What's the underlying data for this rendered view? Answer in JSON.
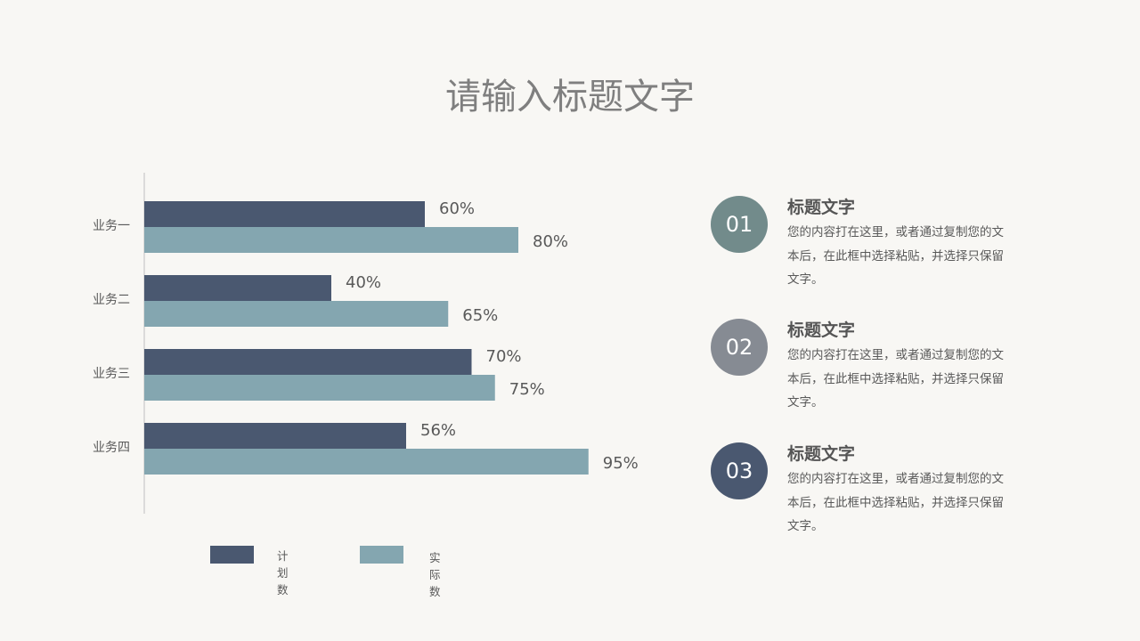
{
  "title": "请输入标题文字",
  "chart_data": {
    "type": "bar",
    "orientation": "horizontal",
    "categories": [
      "业务一",
      "业务二",
      "业务三",
      "业务四"
    ],
    "series": [
      {
        "name": "计划数",
        "color": "#4a5870",
        "values": [
          60,
          40,
          70,
          56
        ],
        "labels": [
          "60%",
          "40%",
          "70%",
          "56%"
        ]
      },
      {
        "name": "实际数",
        "color": "#84a6b0",
        "values": [
          80,
          65,
          75,
          95
        ],
        "labels": [
          "80%",
          "65%",
          "75%",
          "95%"
        ]
      }
    ],
    "unit": "%",
    "legend": "bottom"
  },
  "items": [
    {
      "num": "01",
      "color": "#728b8b",
      "title": "标题文字",
      "desc": "您的内容打在这里，或者通过复制您的文本后，在此框中选择粘贴，并选择只保留文字。"
    },
    {
      "num": "02",
      "color": "#868b93",
      "title": "标题文字",
      "desc": "您的内容打在这里，或者通过复制您的文本后，在此框中选择粘贴，并选择只保留文字。"
    },
    {
      "num": "03",
      "color": "#4a5870",
      "title": "标题文字",
      "desc": "您的内容打在这里，或者通过复制您的文本后，在此框中选择粘贴，并选择只保留文字。"
    }
  ]
}
